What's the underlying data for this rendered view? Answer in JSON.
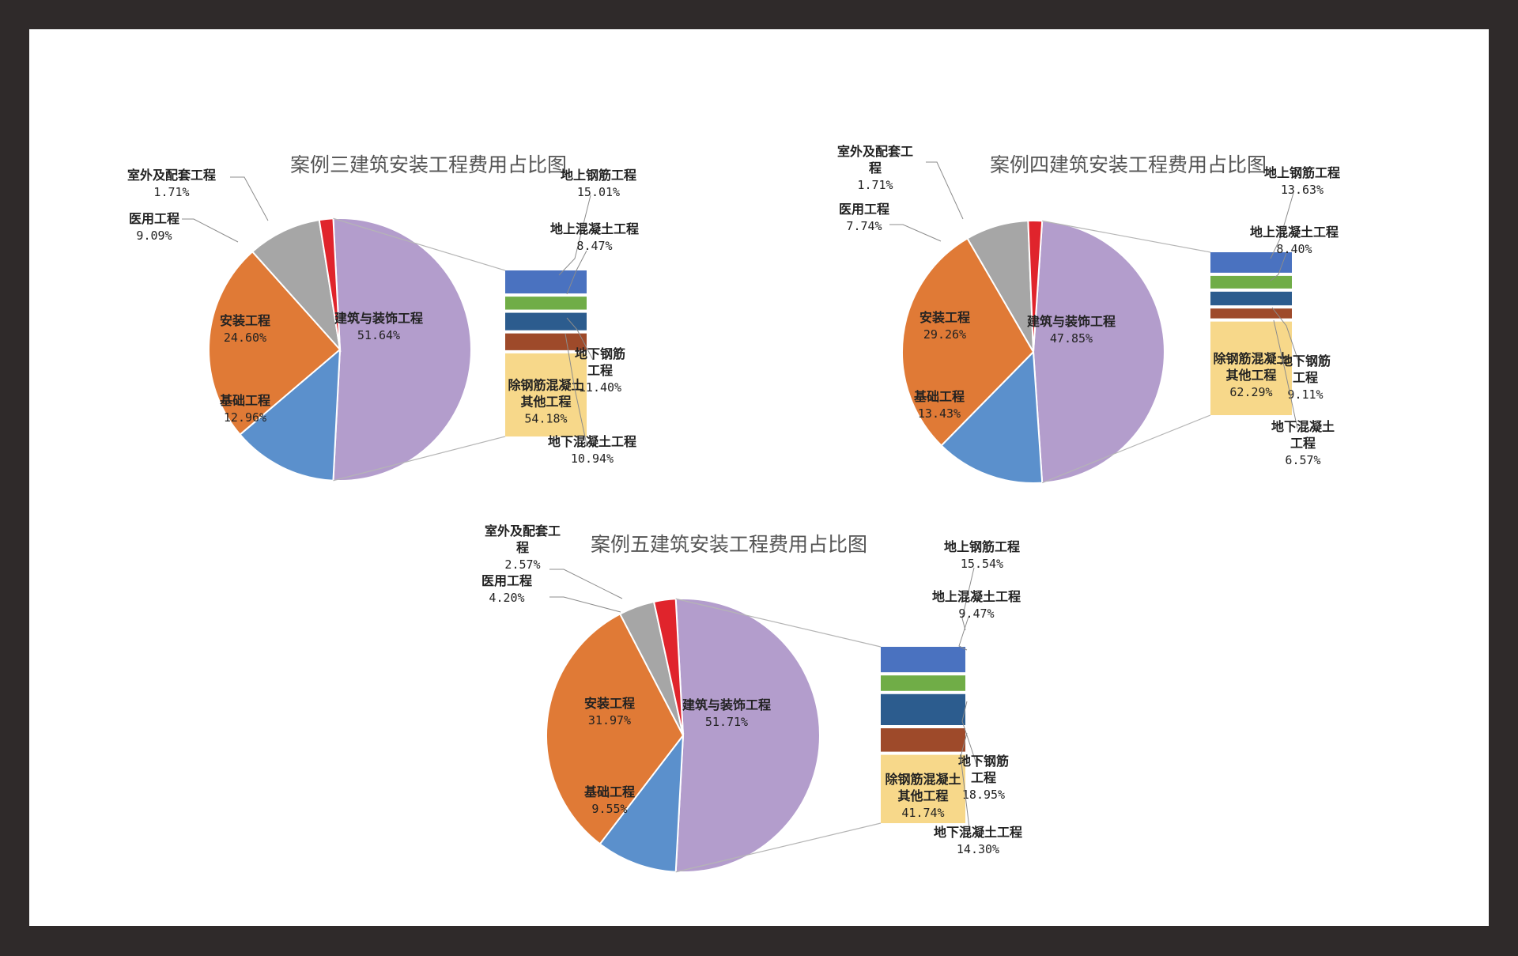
{
  "chart_data": [
    {
      "type": "pie",
      "variant": "bar-of-pie",
      "title": "案例三建筑安装工程费用占比图",
      "pie": [
        {
          "name": "建筑与装饰工程",
          "value": "51.64%",
          "pct": 51.64,
          "color": "#b39dcc"
        },
        {
          "name": "基础工程",
          "value": "12.96%",
          "pct": 12.96,
          "color": "#5b90cc"
        },
        {
          "name": "安装工程",
          "value": "24.60%",
          "pct": 24.6,
          "color": "#e07a36"
        },
        {
          "name": "医用工程",
          "value": "9.09%",
          "pct": 9.09,
          "color": "#a6a6a6"
        },
        {
          "name": "室外及配套工程",
          "value": "1.71%",
          "pct": 1.71,
          "color": "#e0242c"
        }
      ],
      "bar": [
        {
          "name": "地上钢筋工程",
          "value": "15.01%",
          "pct": 15.01,
          "color": "#4a72c0"
        },
        {
          "name": "地上混凝土工程",
          "value": "8.47%",
          "pct": 8.47,
          "color": "#70ad47"
        },
        {
          "name": "地下钢筋工程",
          "value": "11.40%",
          "pct": 11.4,
          "color": "#2c5c8e"
        },
        {
          "name": "地下混凝土工程",
          "value": "10.94%",
          "pct": 10.94,
          "color": "#9e4a2a"
        },
        {
          "name": "除钢筋混凝土其他工程",
          "value": "54.18%",
          "pct": 54.18,
          "color": "#f7d88a"
        }
      ]
    },
    {
      "type": "pie",
      "variant": "bar-of-pie",
      "title": "案例四建筑安装工程费用占比图",
      "pie": [
        {
          "name": "建筑与装饰工程",
          "value": "47.85%",
          "pct": 47.85,
          "color": "#b39dcc"
        },
        {
          "name": "基础工程",
          "value": "13.43%",
          "pct": 13.43,
          "color": "#5b90cc"
        },
        {
          "name": "安装工程",
          "value": "29.26%",
          "pct": 29.26,
          "color": "#e07a36"
        },
        {
          "name": "医用工程",
          "value": "7.74%",
          "pct": 7.74,
          "color": "#a6a6a6"
        },
        {
          "name": "室外及配套工程",
          "value": "1.71%",
          "pct": 1.71,
          "color": "#e0242c"
        }
      ],
      "bar": [
        {
          "name": "地上钢筋工程",
          "value": "13.63%",
          "pct": 13.63,
          "color": "#4a72c0"
        },
        {
          "name": "地上混凝土工程",
          "value": "8.40%",
          "pct": 8.4,
          "color": "#70ad47"
        },
        {
          "name": "地下钢筋工程",
          "value": "9.11%",
          "pct": 9.11,
          "color": "#2c5c8e"
        },
        {
          "name": "地下混凝土工程",
          "value": "6.57%",
          "pct": 6.57,
          "color": "#9e4a2a"
        },
        {
          "name": "除钢筋混凝土其他工程",
          "value": "62.29%",
          "pct": 62.29,
          "color": "#f7d88a"
        }
      ]
    },
    {
      "type": "pie",
      "variant": "bar-of-pie",
      "title": "案例五建筑安装工程费用占比图",
      "pie": [
        {
          "name": "建筑与装饰工程",
          "value": "51.71%",
          "pct": 51.71,
          "color": "#b39dcc"
        },
        {
          "name": "基础工程",
          "value": "9.55%",
          "pct": 9.55,
          "color": "#5b90cc"
        },
        {
          "name": "安装工程",
          "value": "31.97%",
          "pct": 31.97,
          "color": "#e07a36"
        },
        {
          "name": "医用工程",
          "value": "4.20%",
          "pct": 4.2,
          "color": "#a6a6a6"
        },
        {
          "name": "室外及配套工程",
          "value": "2.57%",
          "pct": 2.57,
          "color": "#e0242c"
        }
      ],
      "bar": [
        {
          "name": "地上钢筋工程",
          "value": "15.54%",
          "pct": 15.54,
          "color": "#4a72c0"
        },
        {
          "name": "地上混凝土工程",
          "value": "9.47%",
          "pct": 9.47,
          "color": "#70ad47"
        },
        {
          "name": "地下钢筋工程",
          "value": "18.95%",
          "pct": 18.95,
          "color": "#2c5c8e"
        },
        {
          "name": "地下混凝土工程",
          "value": "14.30%",
          "pct": 14.3,
          "color": "#9e4a2a"
        },
        {
          "name": "除钢筋混凝土其他工程",
          "value": "41.74%",
          "pct": 41.74,
          "color": "#f7d88a"
        }
      ]
    }
  ]
}
